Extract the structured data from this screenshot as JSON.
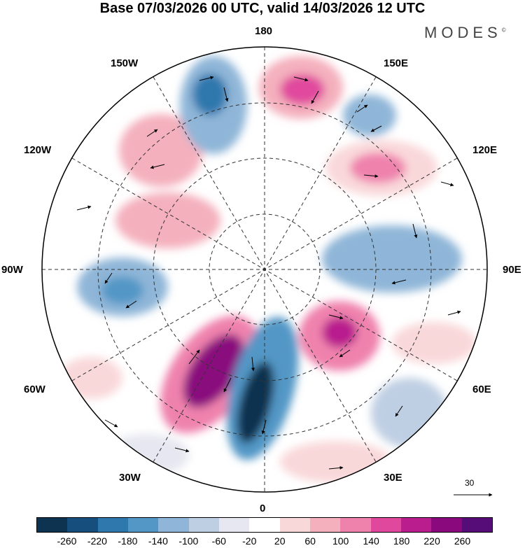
{
  "title": "Base 07/03/2026 00 UTC, valid 14/03/2026 12 UTC",
  "brand": "MODES",
  "brand_mark": "©",
  "longitude_labels": {
    "top": "180",
    "bottom": "0",
    "left": "90W",
    "right": "90E",
    "upper_left": "150W",
    "upper_right": "150E",
    "mid_left": "120W",
    "mid_right": "120E",
    "lower_left": "60W",
    "lower_right": "60E",
    "bottom_left": "30W",
    "bottom_right": "30E"
  },
  "reference_vector": {
    "label": "30"
  },
  "colorbar": {
    "colors": [
      "#0d3350",
      "#164f7e",
      "#2e78ad",
      "#5397c6",
      "#8fb6d8",
      "#bfcfe3",
      "#e6e7f0",
      "#ffffff",
      "#f9d8da",
      "#f4b0bd",
      "#ef82ad",
      "#e0489d",
      "#b91d8e",
      "#8a0a7e",
      "#560d77"
    ],
    "ticks": [
      "-260",
      "-220",
      "-180",
      "-140",
      "-100",
      "-60",
      "-20",
      "20",
      "60",
      "100",
      "140",
      "180",
      "220",
      "260"
    ]
  }
}
